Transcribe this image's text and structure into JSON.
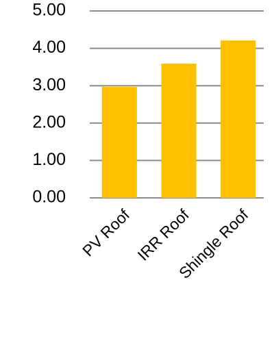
{
  "chart_data": {
    "type": "bar",
    "categories": [
      "PV Roof",
      "IRR Roof",
      "Shingle Roof"
    ],
    "values": [
      2.97,
      3.59,
      4.21
    ],
    "color": "#ffc000",
    "ylim": [
      0,
      5
    ],
    "yticks": [
      {
        "value": 0,
        "label": "0.00"
      },
      {
        "value": 1,
        "label": "1.00"
      },
      {
        "value": 2,
        "label": "2.00"
      },
      {
        "value": 3,
        "label": "3.00"
      },
      {
        "value": 4,
        "label": "4.00"
      },
      {
        "value": 5,
        "label": "5.00"
      }
    ],
    "grid": true
  }
}
